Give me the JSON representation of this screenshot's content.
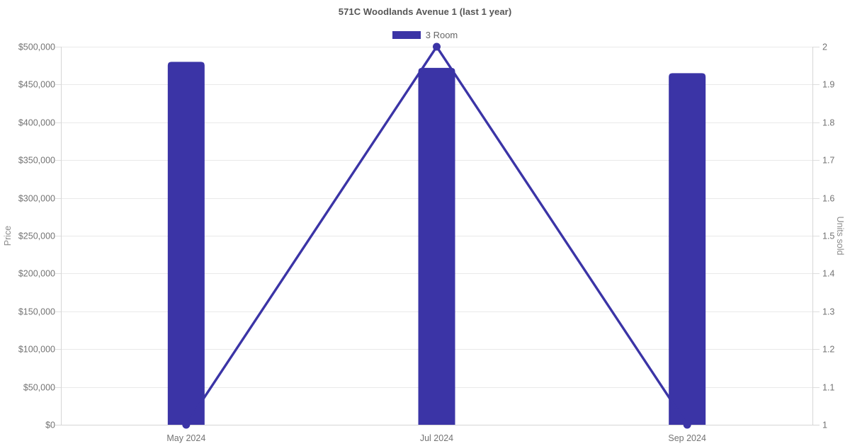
{
  "chart_data": {
    "type": "bar",
    "title": "571C Woodlands Avenue 1 (last 1 year)",
    "categories": [
      "May 2024",
      "Jul 2024",
      "Sep 2024"
    ],
    "series": [
      {
        "name": "3 Room - price",
        "type": "bar",
        "axis": "left",
        "values": [
          480000,
          472000,
          465000
        ]
      },
      {
        "name": "3 Room - units sold",
        "type": "line",
        "axis": "right",
        "values": [
          1,
          2,
          1
        ]
      }
    ],
    "legend": [
      {
        "label": "3 Room",
        "color": "#3b34a6"
      }
    ],
    "legend_position": "top",
    "y_left": {
      "label": "Price",
      "min": 0,
      "max": 500000,
      "step": 50000,
      "tick_labels": [
        "$0",
        "$50,000",
        "$100,000",
        "$150,000",
        "$200,000",
        "$250,000",
        "$300,000",
        "$350,000",
        "$400,000",
        "$450,000",
        "$500,000"
      ]
    },
    "y_right": {
      "label": "Units sold",
      "min": 1,
      "max": 2,
      "step": 0.1,
      "tick_labels": [
        "1",
        "1.1",
        "1.2",
        "1.3",
        "1.4",
        "1.5",
        "1.6",
        "1.7",
        "1.8",
        "1.9",
        "2"
      ]
    },
    "grid": true,
    "colors": {
      "accent": "#3b34a6",
      "grid": "#e9e9e9",
      "tick": "#dedede",
      "axis_line": "#d6d6d6",
      "tick_text": "#737373",
      "title_text": "#555555",
      "legend_text": "#666666",
      "axis_title_text": "#8b8b8b",
      "background": "#ffffff"
    }
  }
}
